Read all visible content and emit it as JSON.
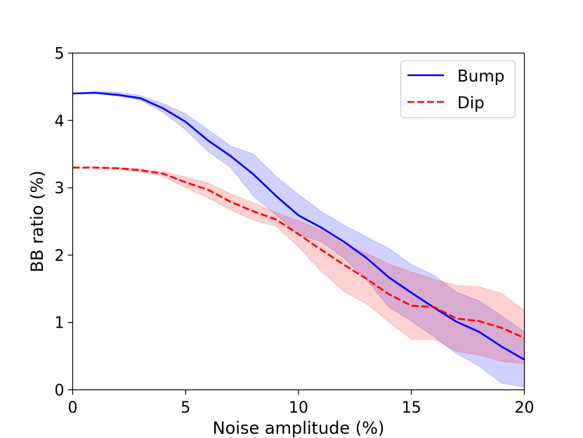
{
  "chart_data": {
    "type": "line",
    "title": "",
    "xlabel": "Noise amplitude (%)",
    "ylabel": "BB ratio (%)",
    "xlim": [
      0,
      20
    ],
    "ylim": [
      0,
      5
    ],
    "grid": false,
    "legend_position": "top-right",
    "xticks": [
      0,
      5,
      10,
      15,
      20
    ],
    "yticks": [
      0,
      1,
      2,
      3,
      4,
      5
    ],
    "xtick_labels": [
      "0",
      "5",
      "10",
      "15",
      "20"
    ],
    "ytick_labels": [
      "0",
      "1",
      "2",
      "3",
      "4",
      "5"
    ],
    "x": [
      0,
      1,
      2,
      3,
      4,
      5,
      6,
      7,
      8,
      9,
      10,
      11,
      12,
      13,
      14,
      15,
      16,
      17,
      18,
      19,
      20
    ],
    "series": [
      {
        "name": "Bump",
        "color": "#0000ff",
        "line_style": "solid",
        "values": [
          4.4,
          4.41,
          4.38,
          4.33,
          4.18,
          3.98,
          3.7,
          3.47,
          3.2,
          2.88,
          2.59,
          2.41,
          2.2,
          1.96,
          1.67,
          1.44,
          1.22,
          1.01,
          0.86,
          0.64,
          0.45
        ],
        "band_upper": [
          4.4,
          4.43,
          4.42,
          4.37,
          4.25,
          4.1,
          3.86,
          3.62,
          3.5,
          3.17,
          2.9,
          2.65,
          2.45,
          2.27,
          2.1,
          1.86,
          1.7,
          1.45,
          1.32,
          1.1,
          0.86
        ],
        "band_lower": [
          4.4,
          4.4,
          4.36,
          4.3,
          4.12,
          3.86,
          3.54,
          3.3,
          2.88,
          2.6,
          2.3,
          2.2,
          1.96,
          1.64,
          1.23,
          1.02,
          0.79,
          0.54,
          0.35,
          0.1,
          0.04
        ]
      },
      {
        "name": "Dip",
        "color": "#ff0000",
        "line_style": "dashed",
        "values": [
          3.3,
          3.3,
          3.29,
          3.26,
          3.21,
          3.08,
          2.97,
          2.79,
          2.65,
          2.53,
          2.31,
          2.08,
          1.86,
          1.65,
          1.42,
          1.25,
          1.23,
          1.06,
          1.02,
          0.92,
          0.77
        ],
        "band_upper": [
          3.3,
          3.3,
          3.3,
          3.28,
          3.24,
          3.16,
          3.07,
          2.91,
          2.78,
          2.63,
          2.51,
          2.37,
          2.16,
          2.03,
          1.87,
          1.75,
          1.64,
          1.55,
          1.53,
          1.43,
          1.18
        ],
        "band_lower": [
          3.3,
          3.3,
          3.28,
          3.23,
          3.17,
          3.0,
          2.85,
          2.67,
          2.52,
          2.43,
          2.12,
          1.76,
          1.46,
          1.28,
          1.01,
          0.75,
          0.75,
          0.57,
          0.52,
          0.42,
          0.39
        ]
      }
    ]
  }
}
